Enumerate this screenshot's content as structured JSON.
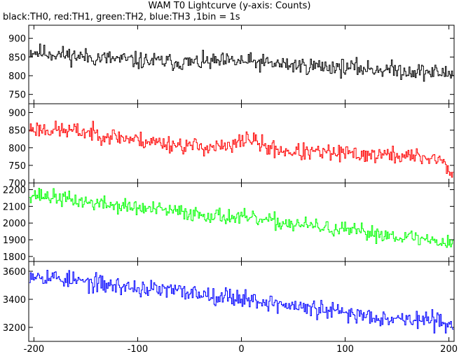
{
  "title": "WAM T0 Lightcurve (y-axis: Counts)",
  "subtitle": "black:TH0, red:TH1, green:TH2, blue:TH3 ,1bin = 1s",
  "chart_data": {
    "type": "line",
    "xlim": [
      -205,
      205
    ],
    "xticks": [
      -200,
      -100,
      0,
      100,
      200
    ],
    "x": {
      "start": -204,
      "end": 204,
      "step": 1
    },
    "grid": false,
    "legend": "none",
    "panels": [
      {
        "series": "TH0",
        "color": "#000000",
        "ylim": [
          725,
          935
        ],
        "yticks": [
          750,
          800,
          850,
          900
        ],
        "trend": [
          [
            -204,
            865
          ],
          [
            -150,
            850
          ],
          [
            -100,
            840
          ],
          [
            -50,
            835
          ],
          [
            0,
            838
          ],
          [
            50,
            828
          ],
          [
            100,
            822
          ],
          [
            150,
            815
          ],
          [
            204,
            805
          ]
        ],
        "noise": 34,
        "seed": 11
      },
      {
        "series": "TH1",
        "color": "#ff0000",
        "ylim": [
          700,
          925
        ],
        "yticks": [
          700,
          750,
          800,
          850,
          900
        ],
        "trend": [
          [
            -204,
            855
          ],
          [
            -150,
            845
          ],
          [
            -100,
            822
          ],
          [
            -50,
            805
          ],
          [
            -10,
            800
          ],
          [
            5,
            830
          ],
          [
            25,
            800
          ],
          [
            50,
            788
          ],
          [
            100,
            783
          ],
          [
            150,
            778
          ],
          [
            190,
            770
          ],
          [
            204,
            725
          ]
        ],
        "noise": 36,
        "seed": 23
      },
      {
        "series": "TH2",
        "color": "#00ff00",
        "ylim": [
          1770,
          2240
        ],
        "yticks": [
          1800,
          1900,
          2000,
          2100,
          2200
        ],
        "trend": [
          [
            -204,
            2175
          ],
          [
            -150,
            2125
          ],
          [
            -100,
            2090
          ],
          [
            -50,
            2060
          ],
          [
            0,
            2030
          ],
          [
            50,
            1995
          ],
          [
            100,
            1955
          ],
          [
            150,
            1925
          ],
          [
            204,
            1880
          ]
        ],
        "noise": 70,
        "seed": 37
      },
      {
        "series": "TH3",
        "color": "#0000ff",
        "ylim": [
          3100,
          3670
        ],
        "yticks": [
          3200,
          3400,
          3600
        ],
        "trend": [
          [
            -204,
            3585
          ],
          [
            -150,
            3520
          ],
          [
            -100,
            3480
          ],
          [
            -50,
            3450
          ],
          [
            0,
            3410
          ],
          [
            50,
            3350
          ],
          [
            100,
            3300
          ],
          [
            150,
            3265
          ],
          [
            204,
            3235
          ]
        ],
        "noise": 95,
        "seed": 53
      }
    ]
  }
}
